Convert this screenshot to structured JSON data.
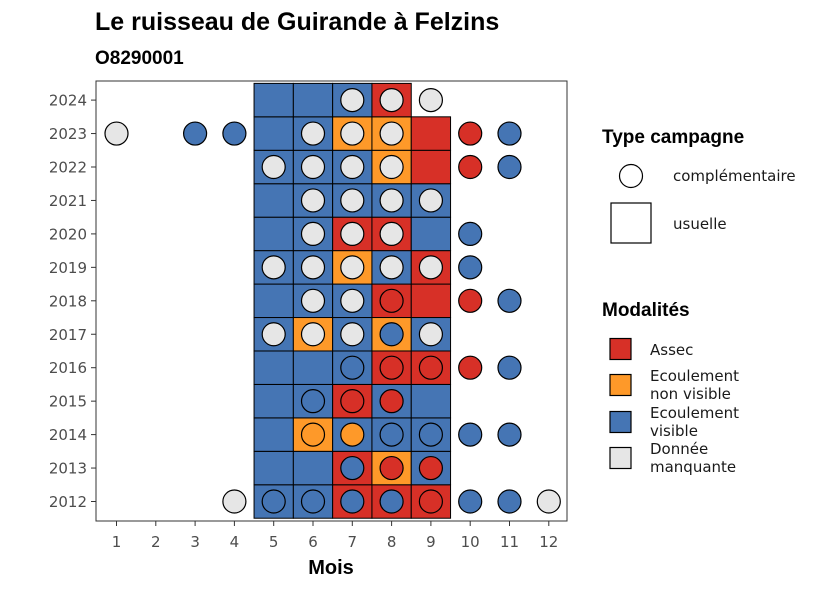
{
  "chart_data": {
    "type": "heatmap",
    "title": "Le ruisseau de Guirande à Felzins",
    "subtitle": "O8290001",
    "xlabel": "Mois",
    "ylabel": "",
    "x_ticks": [
      "1",
      "2",
      "3",
      "4",
      "5",
      "6",
      "7",
      "8",
      "9",
      "10",
      "11",
      "12"
    ],
    "y_ticks": [
      "2012",
      "2013",
      "2014",
      "2015",
      "2016",
      "2017",
      "2018",
      "2019",
      "2020",
      "2021",
      "2022",
      "2023",
      "2024"
    ],
    "grid": false,
    "legend_placement": "right",
    "legend_type": {
      "title": "Type campagne",
      "entries": [
        {
          "key": "complementaire",
          "label": "complémentaire",
          "shape": "circle"
        },
        {
          "key": "usuelle",
          "label": "usuelle",
          "shape": "square"
        }
      ]
    },
    "legend_modalites": {
      "title": "Modalités",
      "entries": [
        {
          "key": "assec",
          "line1": "Assec",
          "line2": "",
          "color": "#d73027"
        },
        {
          "key": "nv",
          "line1": "Ecoulement",
          "line2": "non visible",
          "color": "#fe9929"
        },
        {
          "key": "v",
          "line1": "Ecoulement",
          "line2": "visible",
          "color": "#4575b4"
        },
        {
          "key": "nd",
          "line1": "Donnée",
          "line2": "manquante",
          "color": "#e6e6e6"
        }
      ]
    },
    "usuelle": [
      {
        "year": 2012,
        "month": 5,
        "modalite": "v"
      },
      {
        "year": 2012,
        "month": 6,
        "modalite": "v"
      },
      {
        "year": 2012,
        "month": 7,
        "modalite": "assec"
      },
      {
        "year": 2012,
        "month": 8,
        "modalite": "assec"
      },
      {
        "year": 2012,
        "month": 9,
        "modalite": "assec"
      },
      {
        "year": 2013,
        "month": 5,
        "modalite": "v"
      },
      {
        "year": 2013,
        "month": 6,
        "modalite": "v"
      },
      {
        "year": 2013,
        "month": 7,
        "modalite": "assec"
      },
      {
        "year": 2013,
        "month": 8,
        "modalite": "nv"
      },
      {
        "year": 2013,
        "month": 9,
        "modalite": "v"
      },
      {
        "year": 2014,
        "month": 5,
        "modalite": "v"
      },
      {
        "year": 2014,
        "month": 6,
        "modalite": "nv"
      },
      {
        "year": 2014,
        "month": 7,
        "modalite": "v"
      },
      {
        "year": 2014,
        "month": 8,
        "modalite": "v"
      },
      {
        "year": 2014,
        "month": 9,
        "modalite": "v"
      },
      {
        "year": 2015,
        "month": 5,
        "modalite": "v"
      },
      {
        "year": 2015,
        "month": 6,
        "modalite": "v"
      },
      {
        "year": 2015,
        "month": 7,
        "modalite": "assec"
      },
      {
        "year": 2015,
        "month": 8,
        "modalite": "v"
      },
      {
        "year": 2015,
        "month": 9,
        "modalite": "v"
      },
      {
        "year": 2016,
        "month": 5,
        "modalite": "v"
      },
      {
        "year": 2016,
        "month": 6,
        "modalite": "v"
      },
      {
        "year": 2016,
        "month": 7,
        "modalite": "v"
      },
      {
        "year": 2016,
        "month": 8,
        "modalite": "assec"
      },
      {
        "year": 2016,
        "month": 9,
        "modalite": "assec"
      },
      {
        "year": 2017,
        "month": 5,
        "modalite": "v"
      },
      {
        "year": 2017,
        "month": 6,
        "modalite": "nv"
      },
      {
        "year": 2017,
        "month": 7,
        "modalite": "v"
      },
      {
        "year": 2017,
        "month": 8,
        "modalite": "nv"
      },
      {
        "year": 2017,
        "month": 9,
        "modalite": "v"
      },
      {
        "year": 2018,
        "month": 5,
        "modalite": "v"
      },
      {
        "year": 2018,
        "month": 6,
        "modalite": "v"
      },
      {
        "year": 2018,
        "month": 7,
        "modalite": "v"
      },
      {
        "year": 2018,
        "month": 8,
        "modalite": "assec"
      },
      {
        "year": 2018,
        "month": 9,
        "modalite": "assec"
      },
      {
        "year": 2019,
        "month": 5,
        "modalite": "v"
      },
      {
        "year": 2019,
        "month": 6,
        "modalite": "v"
      },
      {
        "year": 2019,
        "month": 7,
        "modalite": "nv"
      },
      {
        "year": 2019,
        "month": 8,
        "modalite": "v"
      },
      {
        "year": 2019,
        "month": 9,
        "modalite": "assec"
      },
      {
        "year": 2020,
        "month": 5,
        "modalite": "v"
      },
      {
        "year": 2020,
        "month": 6,
        "modalite": "v"
      },
      {
        "year": 2020,
        "month": 7,
        "modalite": "assec"
      },
      {
        "year": 2020,
        "month": 8,
        "modalite": "assec"
      },
      {
        "year": 2020,
        "month": 9,
        "modalite": "v"
      },
      {
        "year": 2021,
        "month": 5,
        "modalite": "v"
      },
      {
        "year": 2021,
        "month": 6,
        "modalite": "v"
      },
      {
        "year": 2021,
        "month": 7,
        "modalite": "v"
      },
      {
        "year": 2021,
        "month": 8,
        "modalite": "v"
      },
      {
        "year": 2021,
        "month": 9,
        "modalite": "v"
      },
      {
        "year": 2022,
        "month": 5,
        "modalite": "v"
      },
      {
        "year": 2022,
        "month": 6,
        "modalite": "v"
      },
      {
        "year": 2022,
        "month": 7,
        "modalite": "v"
      },
      {
        "year": 2022,
        "month": 8,
        "modalite": "nv"
      },
      {
        "year": 2022,
        "month": 9,
        "modalite": "assec"
      },
      {
        "year": 2023,
        "month": 5,
        "modalite": "v"
      },
      {
        "year": 2023,
        "month": 6,
        "modalite": "v"
      },
      {
        "year": 2023,
        "month": 7,
        "modalite": "nv"
      },
      {
        "year": 2023,
        "month": 8,
        "modalite": "nv"
      },
      {
        "year": 2023,
        "month": 9,
        "modalite": "assec"
      },
      {
        "year": 2024,
        "month": 5,
        "modalite": "v"
      },
      {
        "year": 2024,
        "month": 6,
        "modalite": "v"
      },
      {
        "year": 2024,
        "month": 7,
        "modalite": "v"
      },
      {
        "year": 2024,
        "month": 8,
        "modalite": "assec"
      }
    ],
    "complementaire": [
      {
        "year": 2012,
        "month": 4,
        "modalite": "nd"
      },
      {
        "year": 2012,
        "month": 5,
        "modalite": "v"
      },
      {
        "year": 2012,
        "month": 6,
        "modalite": "v"
      },
      {
        "year": 2012,
        "month": 7,
        "modalite": "v"
      },
      {
        "year": 2012,
        "month": 8,
        "modalite": "v"
      },
      {
        "year": 2012,
        "month": 9,
        "modalite": "assec"
      },
      {
        "year": 2012,
        "month": 10,
        "modalite": "v"
      },
      {
        "year": 2012,
        "month": 11,
        "modalite": "v"
      },
      {
        "year": 2012,
        "month": 12,
        "modalite": "nd"
      },
      {
        "year": 2013,
        "month": 7,
        "modalite": "v"
      },
      {
        "year": 2013,
        "month": 8,
        "modalite": "assec"
      },
      {
        "year": 2013,
        "month": 9,
        "modalite": "assec"
      },
      {
        "year": 2014,
        "month": 6,
        "modalite": "nv"
      },
      {
        "year": 2014,
        "month": 7,
        "modalite": "nv"
      },
      {
        "year": 2014,
        "month": 8,
        "modalite": "v"
      },
      {
        "year": 2014,
        "month": 9,
        "modalite": "v"
      },
      {
        "year": 2014,
        "month": 10,
        "modalite": "v"
      },
      {
        "year": 2014,
        "month": 11,
        "modalite": "v"
      },
      {
        "year": 2015,
        "month": 6,
        "modalite": "v"
      },
      {
        "year": 2015,
        "month": 7,
        "modalite": "assec"
      },
      {
        "year": 2015,
        "month": 8,
        "modalite": "assec"
      },
      {
        "year": 2016,
        "month": 7,
        "modalite": "v"
      },
      {
        "year": 2016,
        "month": 8,
        "modalite": "assec"
      },
      {
        "year": 2016,
        "month": 9,
        "modalite": "assec"
      },
      {
        "year": 2016,
        "month": 10,
        "modalite": "assec"
      },
      {
        "year": 2016,
        "month": 11,
        "modalite": "v"
      },
      {
        "year": 2017,
        "month": 5,
        "modalite": "nd"
      },
      {
        "year": 2017,
        "month": 6,
        "modalite": "nd"
      },
      {
        "year": 2017,
        "month": 7,
        "modalite": "nd"
      },
      {
        "year": 2017,
        "month": 8,
        "modalite": "v"
      },
      {
        "year": 2017,
        "month": 9,
        "modalite": "nd"
      },
      {
        "year": 2018,
        "month": 6,
        "modalite": "nd"
      },
      {
        "year": 2018,
        "month": 7,
        "modalite": "nd"
      },
      {
        "year": 2018,
        "month": 8,
        "modalite": "assec"
      },
      {
        "year": 2018,
        "month": 10,
        "modalite": "assec"
      },
      {
        "year": 2018,
        "month": 11,
        "modalite": "v"
      },
      {
        "year": 2019,
        "month": 5,
        "modalite": "nd"
      },
      {
        "year": 2019,
        "month": 6,
        "modalite": "nd"
      },
      {
        "year": 2019,
        "month": 7,
        "modalite": "nd"
      },
      {
        "year": 2019,
        "month": 8,
        "modalite": "nd"
      },
      {
        "year": 2019,
        "month": 9,
        "modalite": "nd"
      },
      {
        "year": 2019,
        "month": 10,
        "modalite": "v"
      },
      {
        "year": 2020,
        "month": 6,
        "modalite": "nd"
      },
      {
        "year": 2020,
        "month": 7,
        "modalite": "nd"
      },
      {
        "year": 2020,
        "month": 8,
        "modalite": "nd"
      },
      {
        "year": 2020,
        "month": 10,
        "modalite": "v"
      },
      {
        "year": 2021,
        "month": 6,
        "modalite": "nd"
      },
      {
        "year": 2021,
        "month": 7,
        "modalite": "nd"
      },
      {
        "year": 2021,
        "month": 8,
        "modalite": "nd"
      },
      {
        "year": 2021,
        "month": 9,
        "modalite": "nd"
      },
      {
        "year": 2022,
        "month": 5,
        "modalite": "nd"
      },
      {
        "year": 2022,
        "month": 6,
        "modalite": "nd"
      },
      {
        "year": 2022,
        "month": 7,
        "modalite": "nd"
      },
      {
        "year": 2022,
        "month": 8,
        "modalite": "nd"
      },
      {
        "year": 2022,
        "month": 10,
        "modalite": "assec"
      },
      {
        "year": 2022,
        "month": 11,
        "modalite": "v"
      },
      {
        "year": 2023,
        "month": 1,
        "modalite": "nd"
      },
      {
        "year": 2023,
        "month": 3,
        "modalite": "v"
      },
      {
        "year": 2023,
        "month": 4,
        "modalite": "v"
      },
      {
        "year": 2023,
        "month": 6,
        "modalite": "nd"
      },
      {
        "year": 2023,
        "month": 7,
        "modalite": "nd"
      },
      {
        "year": 2023,
        "month": 8,
        "modalite": "nd"
      },
      {
        "year": 2023,
        "month": 10,
        "modalite": "assec"
      },
      {
        "year": 2023,
        "month": 11,
        "modalite": "v"
      },
      {
        "year": 2024,
        "month": 7,
        "modalite": "nd"
      },
      {
        "year": 2024,
        "month": 8,
        "modalite": "nd"
      },
      {
        "year": 2024,
        "month": 9,
        "modalite": "nd"
      }
    ]
  }
}
